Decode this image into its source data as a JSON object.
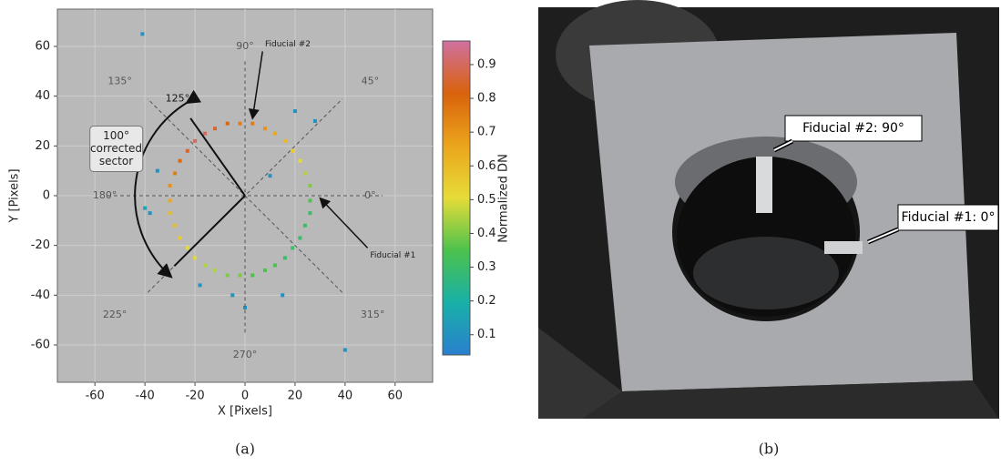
{
  "chart_data": {
    "type": "heatmap",
    "xlabel": "X [Pixels]",
    "ylabel": "Y [Pixels]",
    "xlim": [
      -75,
      75
    ],
    "ylim": [
      -75,
      75
    ],
    "xticks": [
      -60,
      -40,
      -20,
      0,
      20,
      40,
      60
    ],
    "yticks": [
      -60,
      -40,
      -20,
      0,
      20,
      40,
      60
    ],
    "grid": true,
    "x": [
      26,
      26,
      24,
      22,
      19,
      16,
      12,
      8,
      3,
      -2,
      -7,
      -12,
      -16,
      -20,
      -23,
      -26,
      -28,
      -30,
      -30,
      -30,
      -28,
      -26,
      -23,
      -20,
      -16,
      -12,
      -7,
      -2,
      3,
      8,
      12,
      16,
      19,
      22,
      24,
      26,
      -41,
      -38,
      -35,
      -40,
      20,
      28,
      -18,
      15,
      0,
      40,
      10,
      -5
    ],
    "y": [
      -2,
      4,
      9,
      14,
      18,
      22,
      25,
      27,
      29,
      29,
      29,
      27,
      25,
      22,
      18,
      14,
      9,
      4,
      -2,
      -7,
      -12,
      -17,
      -21,
      -25,
      -28,
      -30,
      -32,
      -32,
      -32,
      -30,
      -28,
      -25,
      -21,
      -17,
      -12,
      -7,
      65,
      -7,
      10,
      -5,
      34,
      30,
      -36,
      -40,
      -45,
      -62,
      8,
      -40
    ],
    "values": [
      0.35,
      0.4,
      0.45,
      0.5,
      0.55,
      0.6,
      0.65,
      0.7,
      0.75,
      0.75,
      0.8,
      0.85,
      0.9,
      0.9,
      0.85,
      0.8,
      0.75,
      0.7,
      0.65,
      0.6,
      0.6,
      0.55,
      0.5,
      0.5,
      0.45,
      0.45,
      0.4,
      0.4,
      0.35,
      0.35,
      0.35,
      0.3,
      0.3,
      0.3,
      0.3,
      0.3,
      0.1,
      0.1,
      0.1,
      0.15,
      0.1,
      0.1,
      0.1,
      0.1,
      0.1,
      0.1,
      0.1,
      0.1
    ],
    "colorbar": {
      "label": "Normalized DN",
      "clim": [
        0.04,
        0.97
      ],
      "ticks": [
        0.1,
        0.2,
        0.3,
        0.4,
        0.5,
        0.6,
        0.7,
        0.8,
        0.9
      ],
      "colormap": [
        "#2a7fcf",
        "#18b0a8",
        "#4cc24c",
        "#e6dc38",
        "#eba51c",
        "#d9620c",
        "#d070a0"
      ]
    },
    "angle_labels": [
      "90°",
      "45°",
      "0°",
      "315°",
      "270°",
      "225°",
      "180°",
      "135°"
    ],
    "corner_label": "125°",
    "sector_label": [
      "100°",
      "corrected",
      "sector"
    ],
    "fiducial_labels": [
      "Fiducial #2",
      "Fiducial #1"
    ],
    "caption": "(a)"
  },
  "photo": {
    "callouts": [
      "Fiducial #2: 90°",
      "Fiducial #1: 0°"
    ],
    "caption": "(b)"
  }
}
